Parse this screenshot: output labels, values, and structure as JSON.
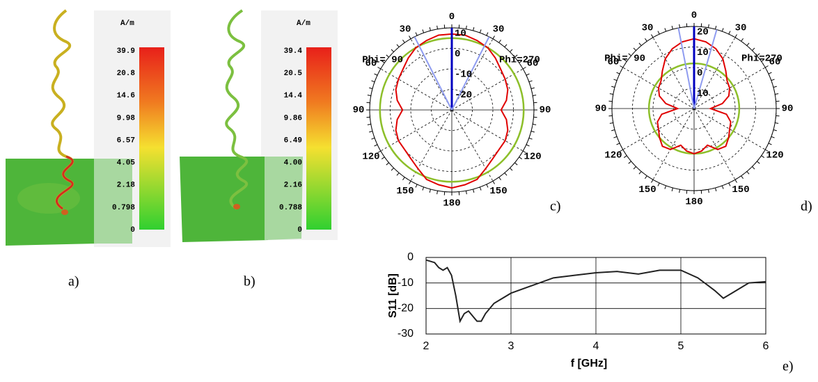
{
  "figures": [
    {
      "caption": "a)",
      "unit": "A/m",
      "scale": [
        "39.9",
        "20.8",
        "14.6",
        "9.98",
        "6.57",
        "4.05",
        "2.18",
        "0.798",
        "0"
      ]
    },
    {
      "caption": "b)",
      "unit": "A/m",
      "scale": [
        "39.4",
        "20.5",
        "14.4",
        "9.86",
        "6.49",
        "4.00",
        "2.16",
        "0.788",
        "0"
      ]
    }
  ],
  "chart_data": [
    {
      "type": "polar",
      "caption": "c)",
      "annotations": [
        "Phi= 90",
        "Phi=270"
      ],
      "rlim": [
        -30,
        10
      ],
      "rticks": [
        -20,
        -10,
        0,
        10
      ],
      "thetaticks": [
        0,
        30,
        60,
        90,
        120,
        150,
        180,
        {
          "value": 210,
          "label": "150"
        },
        {
          "value": 240,
          "label": "120"
        },
        {
          "value": 270,
          "label": "90"
        },
        {
          "value": 300,
          "label": "60"
        },
        {
          "value": 330,
          "label": "30"
        }
      ],
      "circles": [
        {
          "color": "#8dbf2a",
          "value": 5
        }
      ],
      "beams": [
        {
          "color": "#0000c0",
          "theta": 0
        },
        {
          "color": "#8f9cf0",
          "theta": 27
        },
        {
          "color": "#8f9cf0",
          "theta": 333
        }
      ],
      "series": [
        {
          "color": "#e00000",
          "theta": [
            0,
            10,
            20,
            30,
            40,
            50,
            60,
            70,
            80,
            90,
            100,
            110,
            120,
            130,
            140,
            150,
            160,
            170,
            180,
            190,
            200,
            210,
            220,
            230,
            240,
            250,
            260,
            270,
            280,
            290,
            300,
            310,
            320,
            330,
            340,
            350
          ],
          "values": [
            7,
            7,
            6,
            5,
            3,
            1,
            0,
            -1,
            -3,
            -6,
            -3,
            -1,
            0,
            0,
            1,
            3,
            6,
            7,
            8,
            7,
            6,
            3,
            1,
            0,
            0,
            -1,
            -3,
            -6,
            -3,
            -1,
            0,
            1,
            3,
            5,
            6,
            7
          ]
        }
      ]
    },
    {
      "type": "polar",
      "caption": "d)",
      "annotations": [
        "Phi= 90",
        "Phi=270"
      ],
      "rlim": [
        -20,
        20
      ],
      "rticks": [
        {
          "value": -10,
          "label": "10"
        },
        0,
        10,
        20
      ],
      "thetaticks": [
        0,
        30,
        60,
        90,
        120,
        150,
        180,
        {
          "value": 210,
          "label": "150"
        },
        {
          "value": 240,
          "label": "120"
        },
        {
          "value": 270,
          "label": "90"
        },
        {
          "value": 300,
          "label": "60"
        },
        {
          "value": 330,
          "label": "30"
        }
      ],
      "circles": [
        {
          "color": "#8dbf2a",
          "value": 2
        }
      ],
      "beams": [
        {
          "color": "#0000c0",
          "theta": 0
        },
        {
          "color": "#8f9cf0",
          "theta": 11
        },
        {
          "color": "#8f9cf0",
          "theta": 344
        }
      ],
      "series": [
        {
          "color": "#e00000",
          "theta": [
            0,
            10,
            20,
            30,
            40,
            50,
            60,
            70,
            80,
            90,
            100,
            110,
            120,
            130,
            140,
            150,
            160,
            170,
            180,
            190,
            200,
            210,
            220,
            230,
            240,
            250,
            260,
            270,
            280,
            290,
            300,
            310,
            320,
            330,
            340,
            350
          ],
          "values": [
            14,
            13,
            11,
            8,
            4,
            1,
            0,
            -2,
            -6,
            -12,
            -4,
            -1,
            0,
            2,
            4,
            3,
            -1,
            1,
            2,
            1,
            -1,
            3,
            4,
            2,
            0,
            -1,
            -4,
            -12,
            -6,
            -2,
            0,
            1,
            4,
            8,
            11,
            13
          ]
        }
      ]
    },
    {
      "type": "line",
      "caption": "e)",
      "xlabel": "f [GHz]",
      "ylabel": "S11 [dB]",
      "grid": true,
      "xlim": [
        2,
        6
      ],
      "xticks": [
        2,
        3,
        4,
        5,
        6
      ],
      "ylim": [
        -30,
        0
      ],
      "yticks": [
        -30,
        -20,
        -10,
        0
      ],
      "x": [
        2,
        2.1,
        2.15,
        2.2,
        2.25,
        2.3,
        2.35,
        2.4,
        2.45,
        2.5,
        2.55,
        2.6,
        2.65,
        2.7,
        2.8,
        3,
        3.25,
        3.5,
        3.75,
        4,
        4.25,
        4.5,
        4.75,
        5,
        5.2,
        5.4,
        5.5,
        5.6,
        5.8,
        6
      ],
      "series": [
        {
          "color": "#222222",
          "values": [
            -1,
            -2,
            -4,
            -5,
            -4,
            -7,
            -15,
            -25,
            -22,
            -21,
            -23,
            -25,
            -25,
            -22,
            -18,
            -14,
            -11,
            -8,
            -7,
            -6,
            -5.5,
            -6.5,
            -5,
            -5,
            -8,
            -13,
            -16,
            -14,
            -10,
            -9.5
          ]
        }
      ]
    }
  ]
}
